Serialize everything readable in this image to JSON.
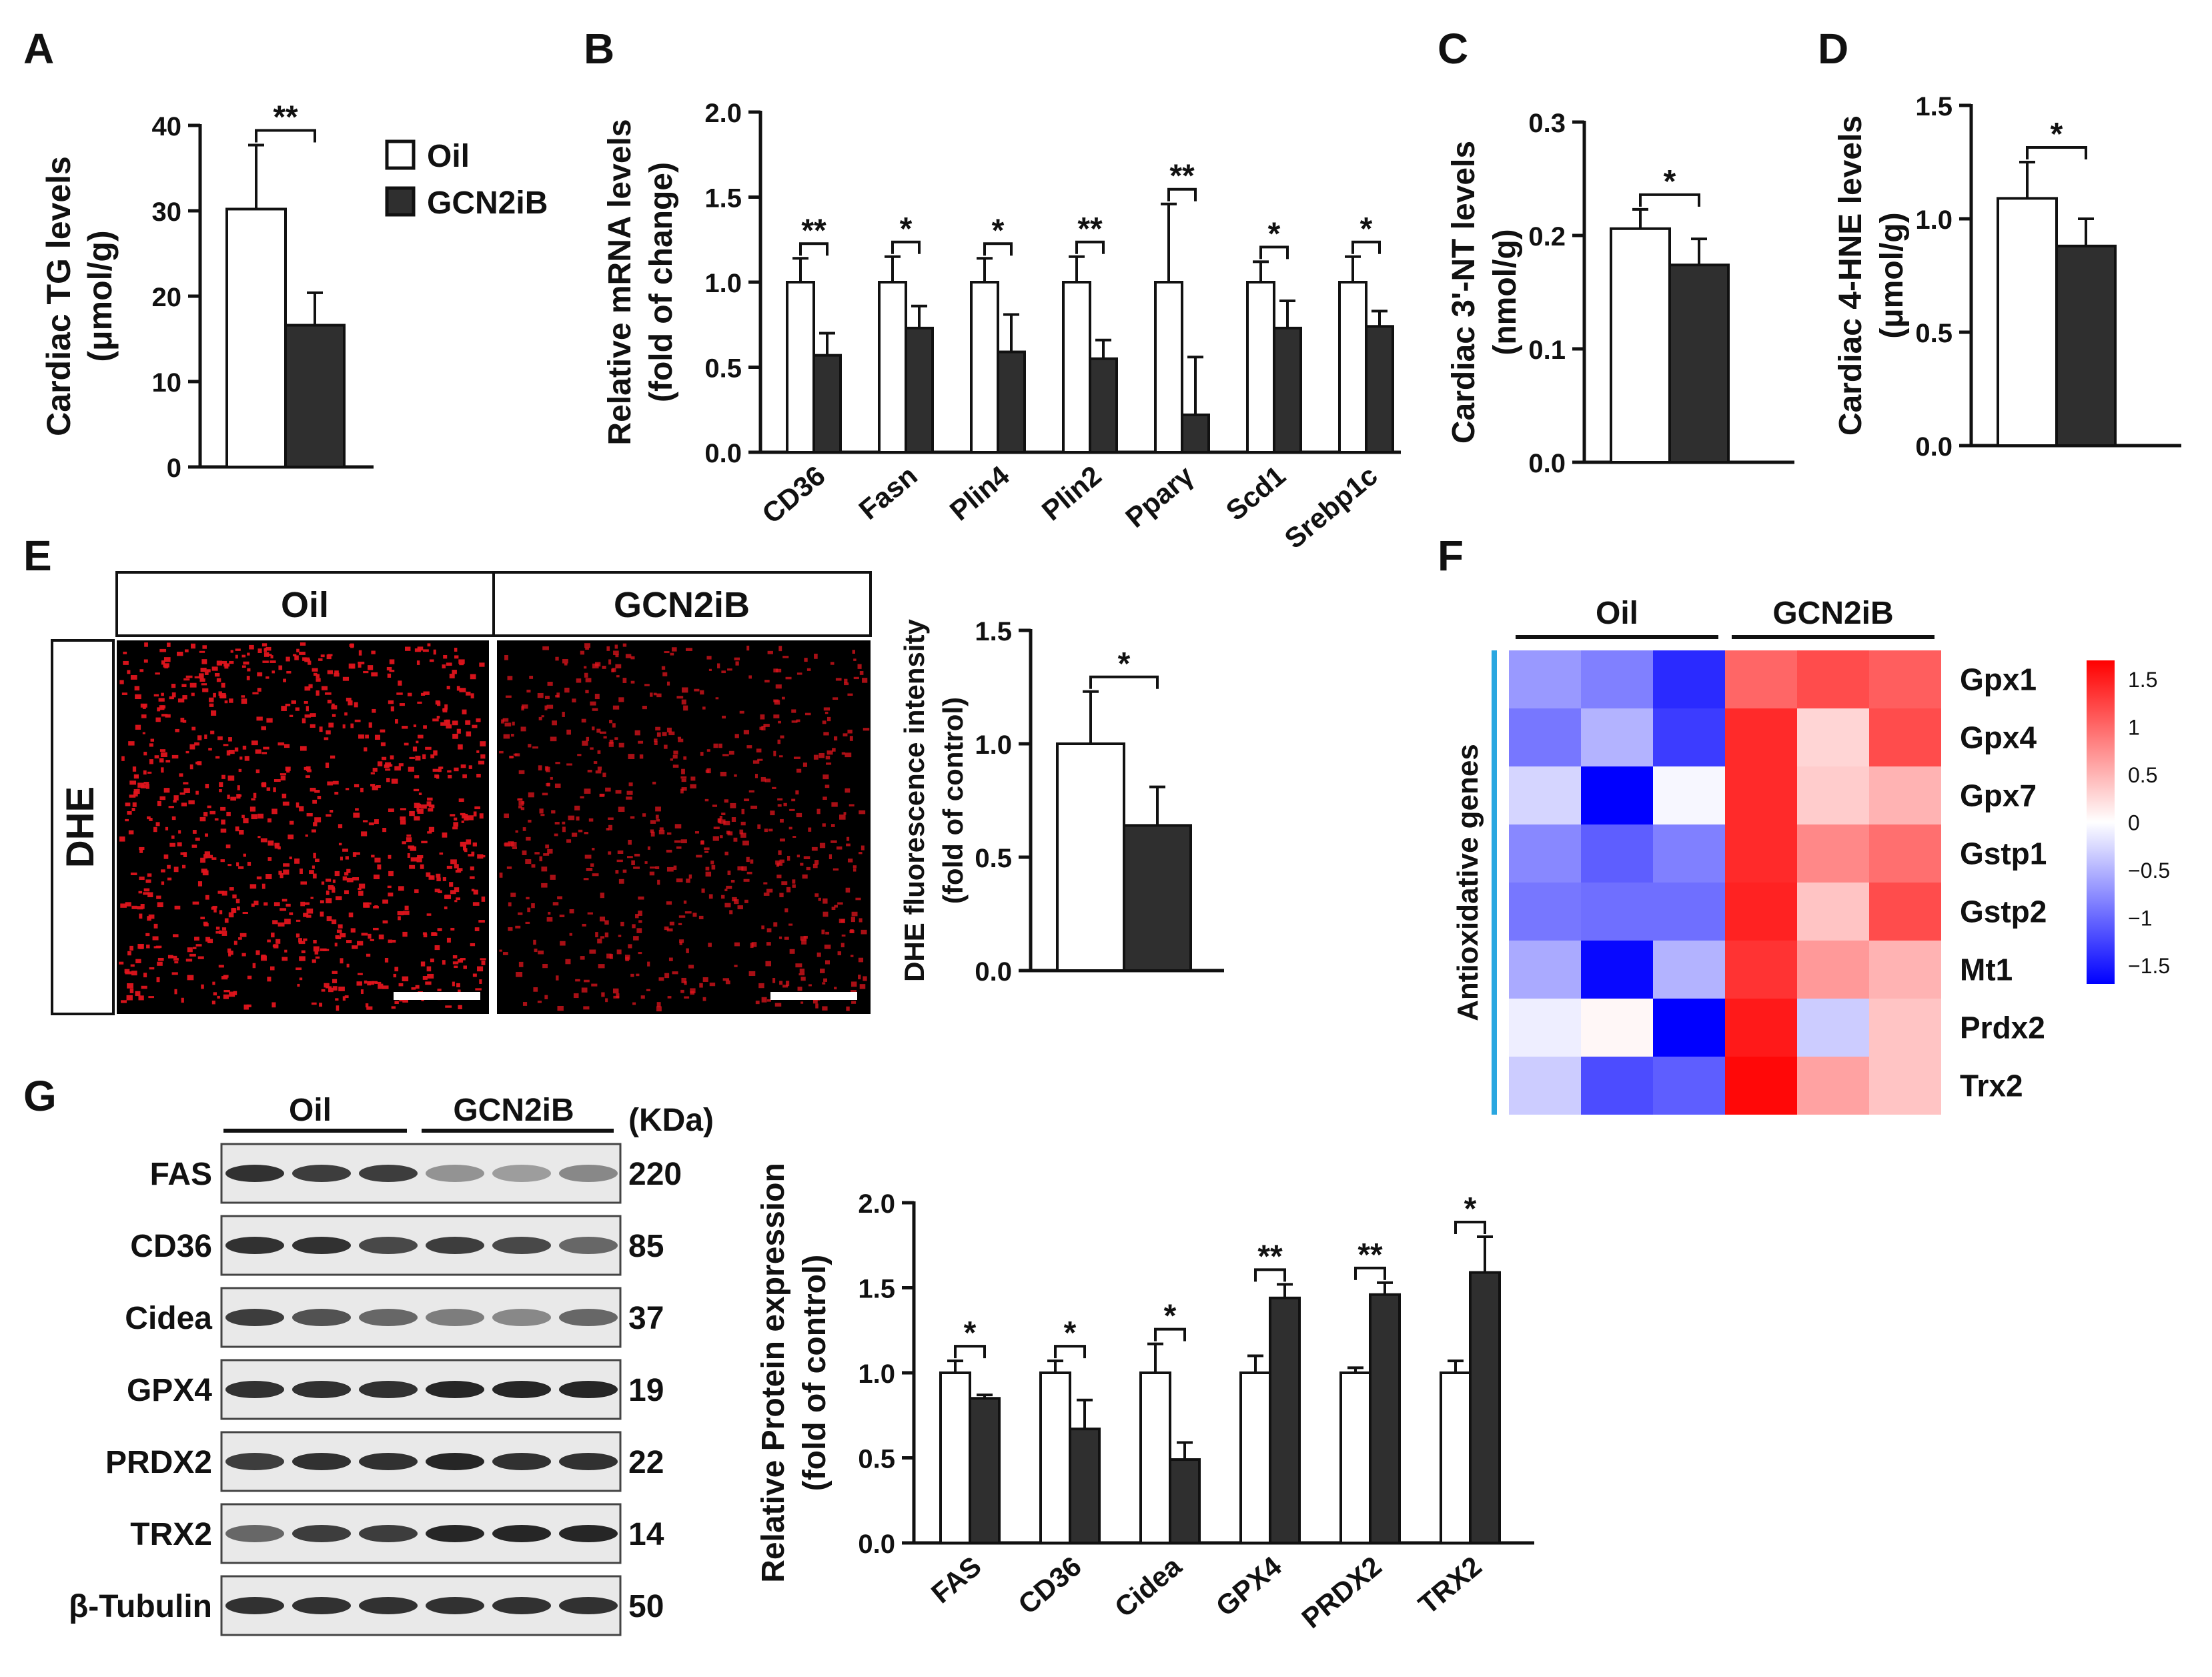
{
  "figure": {
    "panel_letters": [
      "A",
      "B",
      "C",
      "D",
      "E",
      "F",
      "G"
    ],
    "legend": {
      "oil": "Oil",
      "gcn2ib": "GCN2iB"
    },
    "colors": {
      "oil": "#ffffff",
      "gcn2ib": "#2f2f2f",
      "heat_high": "#ff0000",
      "heat_low": "#0000ff",
      "accent_bracket": "#2aa7e0"
    }
  },
  "chart_data": [
    {
      "panel": "A",
      "type": "bar",
      "ylabel": [
        "Cardiac TG levels",
        "(μmol/g)"
      ],
      "ylim": [
        0,
        40
      ],
      "yticks": [
        "0",
        "10",
        "20",
        "30",
        "40"
      ],
      "categories": [
        ""
      ],
      "series": [
        {
          "name": "Oil",
          "values": [
            30.2
          ],
          "errors": [
            7.5
          ]
        },
        {
          "name": "GCN2iB",
          "values": [
            16.6
          ],
          "errors": [
            3.8
          ]
        }
      ],
      "significance": [
        "**"
      ]
    },
    {
      "panel": "B",
      "type": "bar",
      "ylabel": [
        "Relative mRNA levels",
        "(fold of change)"
      ],
      "ylim": [
        0,
        2.0
      ],
      "yticks": [
        "0.0",
        "0.5",
        "1.0",
        "1.5",
        "2.0"
      ],
      "categories": [
        "CD36",
        "Fasn",
        "Plin4",
        "Plin2",
        "Pparγ",
        "Scd1",
        "Srebp1c"
      ],
      "series": [
        {
          "name": "Oil",
          "values": [
            1.0,
            1.0,
            1.0,
            1.0,
            1.0,
            1.0,
            1.0
          ],
          "errors": [
            0.14,
            0.15,
            0.14,
            0.15,
            0.46,
            0.12,
            0.15
          ]
        },
        {
          "name": "GCN2iB",
          "values": [
            0.57,
            0.73,
            0.59,
            0.55,
            0.22,
            0.73,
            0.74
          ],
          "errors": [
            0.13,
            0.13,
            0.22,
            0.11,
            0.34,
            0.16,
            0.09
          ]
        }
      ],
      "significance": [
        "**",
        "*",
        "*",
        "**",
        "**",
        "*",
        "*"
      ]
    },
    {
      "panel": "C",
      "type": "bar",
      "ylabel": [
        "Cardiac 3'-NT levels",
        "(nmol/g)"
      ],
      "ylim": [
        0,
        0.3
      ],
      "yticks": [
        "0.0",
        "0.1",
        "0.2",
        "0.3"
      ],
      "categories": [
        ""
      ],
      "series": [
        {
          "name": "Oil",
          "values": [
            0.206
          ],
          "errors": [
            0.017
          ]
        },
        {
          "name": "GCN2iB",
          "values": [
            0.174
          ],
          "errors": [
            0.023
          ]
        }
      ],
      "significance": [
        "*"
      ]
    },
    {
      "panel": "D",
      "type": "bar",
      "ylabel": [
        "Cardiac 4-HNE levels",
        "(μmol/g)"
      ],
      "ylim": [
        0,
        1.5
      ],
      "yticks": [
        "0.0",
        "0.5",
        "1.0",
        "1.5"
      ],
      "categories": [
        ""
      ],
      "series": [
        {
          "name": "Oil",
          "values": [
            1.09
          ],
          "errors": [
            0.16
          ]
        },
        {
          "name": "GCN2iB",
          "values": [
            0.88
          ],
          "errors": [
            0.12
          ]
        }
      ],
      "significance": [
        "*"
      ]
    },
    {
      "panel": "E",
      "type": "bar",
      "ylabel": [
        "DHE fluorescence intensity",
        "(fold of control)"
      ],
      "ylim": [
        0,
        1.5
      ],
      "yticks": [
        "0.0",
        "0.5",
        "1.0",
        "1.5"
      ],
      "categories": [
        ""
      ],
      "series": [
        {
          "name": "Oil",
          "values": [
            1.0
          ],
          "errors": [
            0.23
          ]
        },
        {
          "name": "GCN2iB",
          "values": [
            0.64
          ],
          "errors": [
            0.17
          ]
        }
      ],
      "significance": [
        "*"
      ]
    },
    {
      "panel": "G",
      "type": "bar",
      "ylabel": [
        "Relative Protein expression",
        "(fold of control)"
      ],
      "ylim": [
        0,
        2.0
      ],
      "yticks": [
        "0.0",
        "0.5",
        "1.0",
        "1.5",
        "2.0"
      ],
      "categories": [
        "FAS",
        "CD36",
        "Cidea",
        "GPX4",
        "PRDX2",
        "TRX2"
      ],
      "series": [
        {
          "name": "Oil",
          "values": [
            1.0,
            1.0,
            1.0,
            1.0,
            1.0,
            1.0
          ],
          "errors": [
            0.07,
            0.07,
            0.17,
            0.1,
            0.03,
            0.07
          ]
        },
        {
          "name": "GCN2iB",
          "values": [
            0.85,
            0.67,
            0.49,
            1.44,
            1.46,
            1.59
          ],
          "errors": [
            0.02,
            0.17,
            0.1,
            0.08,
            0.07,
            0.21
          ]
        }
      ],
      "significance": [
        "*",
        "*",
        "*",
        "**",
        "**",
        "*"
      ]
    },
    {
      "panel": "F",
      "type": "heatmap",
      "group_labels": [
        "Oil",
        "GCN2iB"
      ],
      "row_group_label": "Antioxidative genes",
      "rows": [
        "Gpx1",
        "Gpx4",
        "Gpx7",
        "Gstp1",
        "Gstp2",
        "Mt1",
        "Prdx2",
        "Trx2"
      ],
      "values": [
        [
          -0.6,
          -0.75,
          -1.25,
          0.9,
          1.05,
          0.95
        ],
        [
          -0.8,
          -0.45,
          -1.15,
          1.25,
          0.25,
          1.05
        ],
        [
          -0.25,
          -1.6,
          -0.05,
          1.25,
          0.3,
          0.45
        ],
        [
          -0.7,
          -0.95,
          -0.75,
          1.25,
          0.7,
          0.85
        ],
        [
          -0.8,
          -0.85,
          -0.85,
          1.3,
          0.35,
          1.05
        ],
        [
          -0.5,
          -1.45,
          -0.45,
          1.2,
          0.6,
          0.45
        ],
        [
          -0.1,
          0.05,
          -1.5,
          1.35,
          -0.3,
          0.35
        ],
        [
          -0.3,
          -1.05,
          -0.95,
          1.45,
          0.55,
          0.35
        ]
      ],
      "colorbar": {
        "ticks": [
          "1.5",
          "1",
          "0.5",
          "0",
          "−0.5",
          "−1",
          "−1.5"
        ],
        "range": [
          -1.5,
          1.5
        ]
      }
    }
  ],
  "dhe": {
    "headers": [
      "Oil",
      "GCN2iB"
    ],
    "row_label": "DHE"
  },
  "blot": {
    "group_labels": [
      "Oil",
      "GCN2iB"
    ],
    "unit_label": "(KDa)",
    "rows": [
      {
        "label": "FAS",
        "kda": "220"
      },
      {
        "label": "CD36",
        "kda": "85"
      },
      {
        "label": "Cidea",
        "kda": "37"
      },
      {
        "label": "GPX4",
        "kda": "19"
      },
      {
        "label": "PRDX2",
        "kda": "22"
      },
      {
        "label": "TRX2",
        "kda": "14"
      },
      {
        "label": "β-Tubulin",
        "kda": "50"
      }
    ]
  }
}
